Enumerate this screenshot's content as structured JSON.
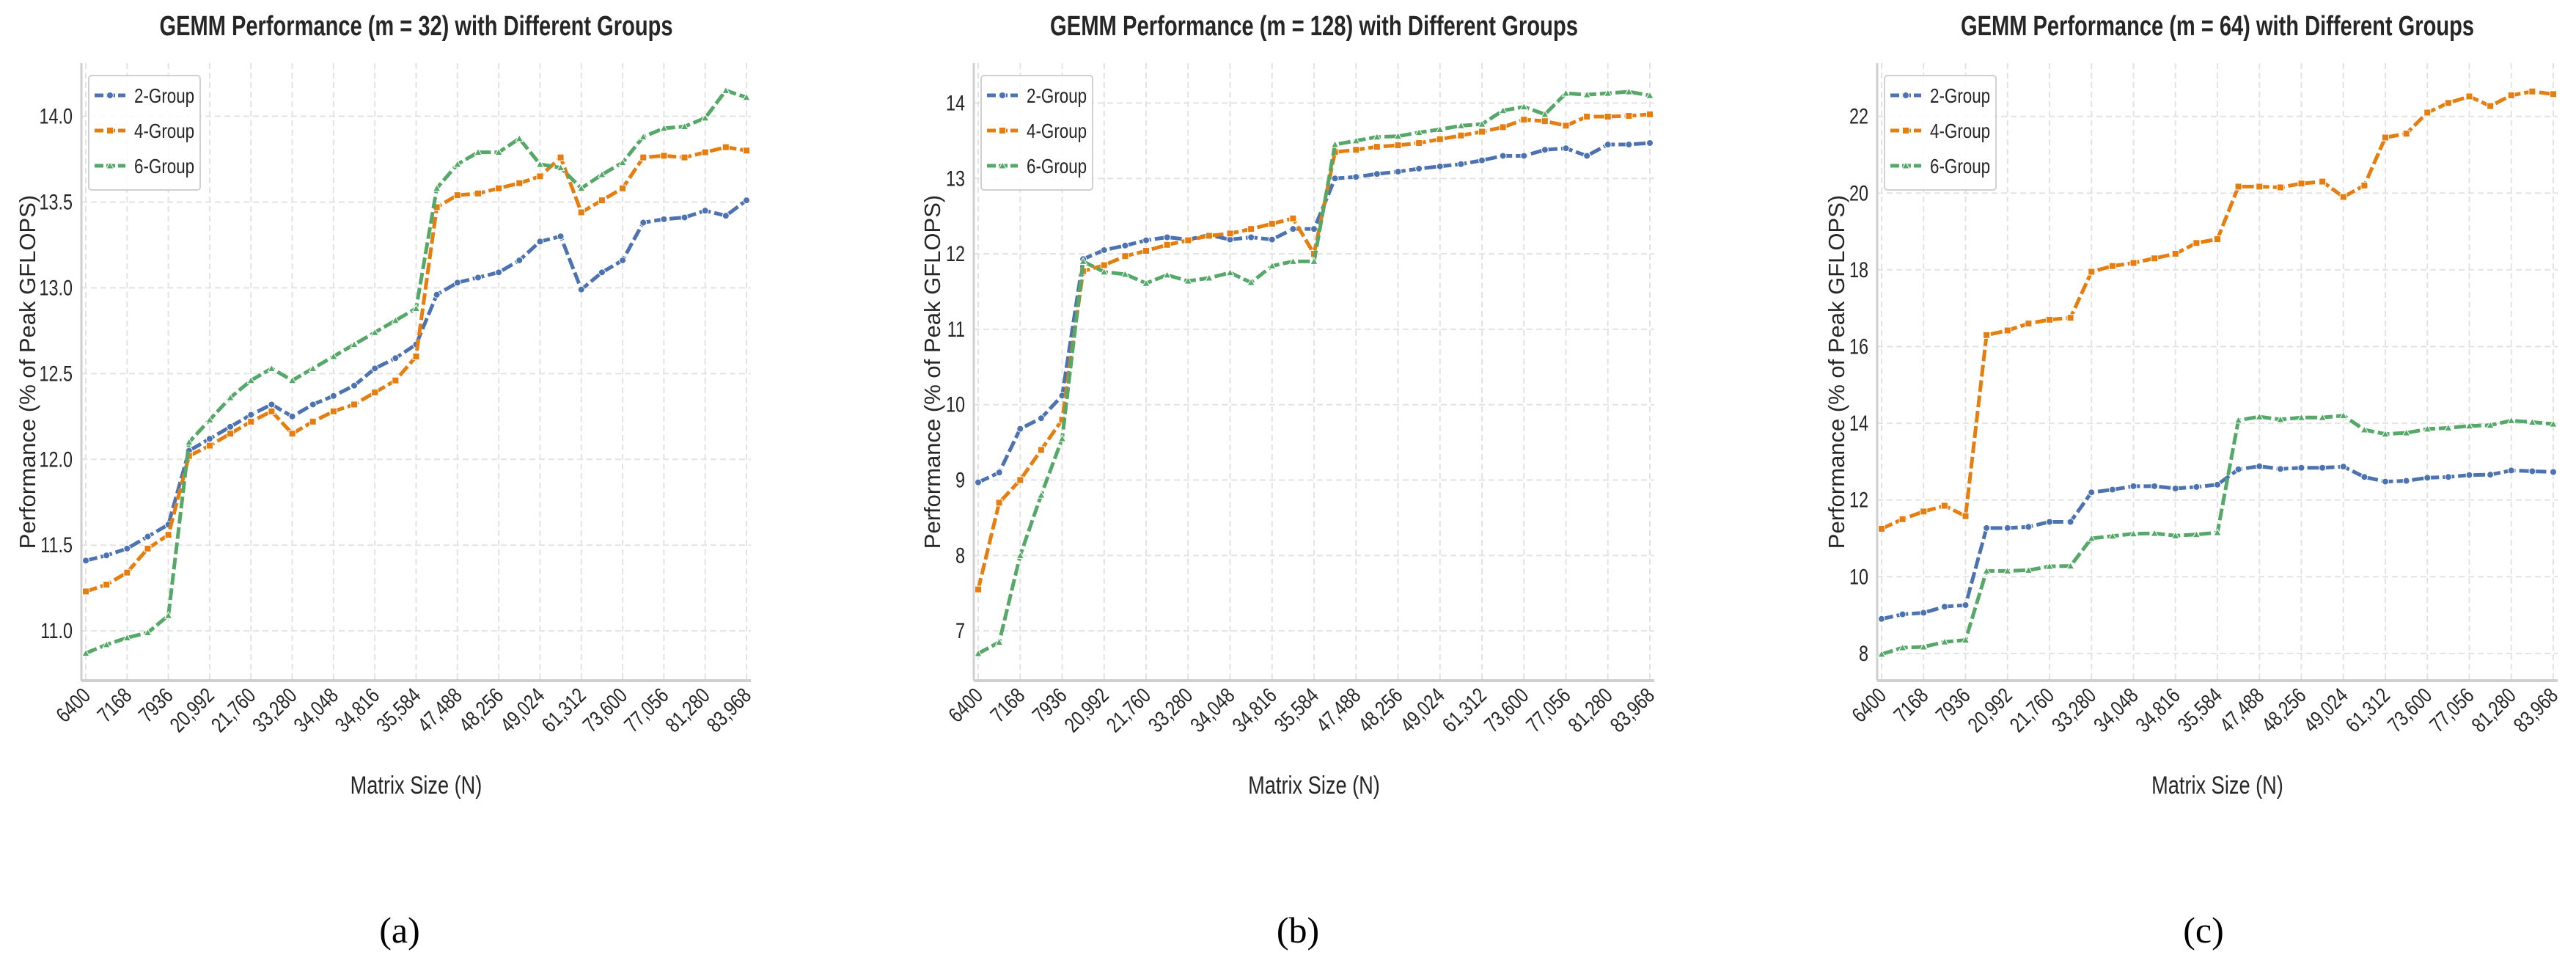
{
  "chart_data": [
    {
      "type": "line",
      "subcaption": "(a)",
      "title": "GEMM Performance (m = 32) with Different Groups",
      "xlabel": "Matrix Size (N)",
      "ylabel": "Performance (% of Peak GFLOPS)",
      "x_tick_labels": [
        "6400",
        "7168",
        "7936",
        "20,992",
        "21,760",
        "33,280",
        "34,048",
        "34,816",
        "35,584",
        "47,488",
        "48,256",
        "49,024",
        "61,312",
        "73,600",
        "77,056",
        "81,280",
        "83,968"
      ],
      "ylim": [
        10.71,
        14.31
      ],
      "yticks": [
        "11.0",
        "11.5",
        "12.0",
        "12.5",
        "13.0",
        "13.5",
        "14.0"
      ],
      "grid": true,
      "legend": "top-left",
      "series": [
        {
          "name": "2-Group",
          "color": "#4c72b0",
          "marker": "circle",
          "values": [
            11.41,
            11.44,
            11.48,
            11.55,
            11.62,
            12.05,
            12.12,
            12.19,
            12.26,
            12.32,
            12.25,
            12.32,
            12.37,
            12.43,
            12.53,
            12.59,
            12.67,
            12.96,
            13.03,
            13.06,
            13.09,
            13.16,
            13.27,
            13.3,
            12.99,
            13.09,
            13.16,
            13.38,
            13.4,
            13.41,
            13.45,
            13.42,
            13.51
          ]
        },
        {
          "name": "4-Group",
          "color": "#e67e0f",
          "marker": "square",
          "values": [
            11.23,
            11.27,
            11.34,
            11.48,
            11.56,
            12.02,
            12.08,
            12.15,
            12.22,
            12.28,
            12.15,
            12.22,
            12.28,
            12.32,
            12.39,
            12.46,
            12.6,
            13.47,
            13.54,
            13.55,
            13.58,
            13.61,
            13.65,
            13.76,
            13.44,
            13.51,
            13.58,
            13.76,
            13.77,
            13.76,
            13.79,
            13.82,
            13.8
          ]
        },
        {
          "name": "6-Group",
          "color": "#55a868",
          "marker": "triangle",
          "values": [
            10.87,
            10.92,
            10.96,
            10.99,
            11.09,
            12.1,
            12.23,
            12.36,
            12.46,
            12.53,
            12.46,
            12.53,
            12.6,
            12.67,
            12.74,
            12.81,
            12.88,
            13.58,
            13.72,
            13.79,
            13.79,
            13.87,
            13.72,
            13.7,
            13.58,
            13.66,
            13.73,
            13.88,
            13.93,
            13.94,
            13.99,
            14.15,
            14.11
          ]
        }
      ]
    },
    {
      "type": "line",
      "subcaption": "(b)",
      "title": "GEMM Performance (m = 128) with Different Groups",
      "xlabel": "Matrix Size (N)",
      "ylabel": "Performance (% of Peak GFLOPS)",
      "x_tick_labels": [
        "6400",
        "7168",
        "7936",
        "20,992",
        "21,760",
        "33,280",
        "34,048",
        "34,816",
        "35,584",
        "47,488",
        "48,256",
        "49,024",
        "61,312",
        "73,600",
        "77,056",
        "81,280",
        "83,968"
      ],
      "ylim": [
        6.34,
        14.53
      ],
      "yticks": [
        "7",
        "8",
        "9",
        "10",
        "11",
        "12",
        "13",
        "14"
      ],
      "grid": true,
      "legend": "top-left",
      "series": [
        {
          "name": "2-Group",
          "color": "#4c72b0",
          "marker": "circle",
          "values": [
            8.97,
            9.1,
            9.68,
            9.82,
            10.12,
            11.93,
            12.05,
            12.11,
            12.18,
            12.22,
            12.19,
            12.25,
            12.19,
            12.22,
            12.19,
            12.33,
            12.33,
            13.0,
            13.02,
            13.06,
            13.09,
            13.13,
            13.16,
            13.19,
            13.24,
            13.3,
            13.3,
            13.38,
            13.4,
            13.3,
            13.45,
            13.45,
            13.47
          ]
        },
        {
          "name": "4-Group",
          "color": "#e67e0f",
          "marker": "square",
          "values": [
            7.55,
            8.7,
            9.0,
            9.4,
            9.8,
            11.77,
            11.85,
            11.97,
            12.04,
            12.12,
            12.18,
            12.24,
            12.27,
            12.33,
            12.4,
            12.47,
            12.0,
            13.35,
            13.38,
            13.42,
            13.44,
            13.47,
            13.52,
            13.57,
            13.62,
            13.68,
            13.78,
            13.76,
            13.7,
            13.82,
            13.82,
            13.83,
            13.85
          ]
        },
        {
          "name": "6-Group",
          "color": "#55a868",
          "marker": "triangle",
          "values": [
            6.7,
            6.85,
            8.0,
            8.8,
            9.55,
            11.9,
            11.76,
            11.73,
            11.61,
            11.72,
            11.64,
            11.68,
            11.75,
            11.62,
            11.84,
            11.9,
            11.9,
            13.45,
            13.5,
            13.55,
            13.56,
            13.61,
            13.65,
            13.7,
            13.72,
            13.9,
            13.95,
            13.85,
            14.13,
            14.11,
            14.13,
            14.15,
            14.1
          ]
        }
      ]
    },
    {
      "type": "line",
      "subcaption": "(c)",
      "title": "GEMM Performance (m = 64) with Different Groups",
      "xlabel": "Matrix Size (N)",
      "ylabel": "Performance (% of Peak GFLOPS)",
      "x_tick_labels": [
        "6400",
        "7168",
        "7936",
        "20,992",
        "21,760",
        "33,280",
        "34,048",
        "34,816",
        "35,584",
        "47,488",
        "48,256",
        "49,024",
        "61,312",
        "73,600",
        "77,056",
        "81,280",
        "83,968"
      ],
      "ylim": [
        7.29,
        23.39
      ],
      "yticks": [
        "8",
        "10",
        "12",
        "14",
        "16",
        "18",
        "20",
        "22"
      ],
      "grid": true,
      "legend": "top-left",
      "series": [
        {
          "name": "2-Group",
          "color": "#4c72b0",
          "marker": "circle",
          "values": [
            8.9,
            9.02,
            9.06,
            9.22,
            9.26,
            11.27,
            11.27,
            11.3,
            11.43,
            11.43,
            12.2,
            12.27,
            12.36,
            12.36,
            12.3,
            12.34,
            12.4,
            12.8,
            12.88,
            12.81,
            12.84,
            12.84,
            12.87,
            12.6,
            12.48,
            12.5,
            12.58,
            12.6,
            12.65,
            12.66,
            12.77,
            12.75,
            12.73
          ]
        },
        {
          "name": "4-Group",
          "color": "#e67e0f",
          "marker": "square",
          "values": [
            11.25,
            11.5,
            11.7,
            11.85,
            11.58,
            16.3,
            16.42,
            16.6,
            16.7,
            16.75,
            17.95,
            18.1,
            18.18,
            18.3,
            18.42,
            18.7,
            18.8,
            20.17,
            20.17,
            20.15,
            20.25,
            20.3,
            19.9,
            20.2,
            21.45,
            21.55,
            22.1,
            22.35,
            22.52,
            22.27,
            22.55,
            22.65,
            22.58
          ]
        },
        {
          "name": "6-Group",
          "color": "#55a868",
          "marker": "triangle",
          "values": [
            7.98,
            8.15,
            8.17,
            8.3,
            8.35,
            10.15,
            10.15,
            10.17,
            10.27,
            10.28,
            11.0,
            11.06,
            11.12,
            11.13,
            11.07,
            11.1,
            11.15,
            14.08,
            14.17,
            14.1,
            14.15,
            14.15,
            14.2,
            13.83,
            13.72,
            13.75,
            13.85,
            13.88,
            13.93,
            13.95,
            14.07,
            14.03,
            13.98
          ]
        }
      ]
    }
  ]
}
